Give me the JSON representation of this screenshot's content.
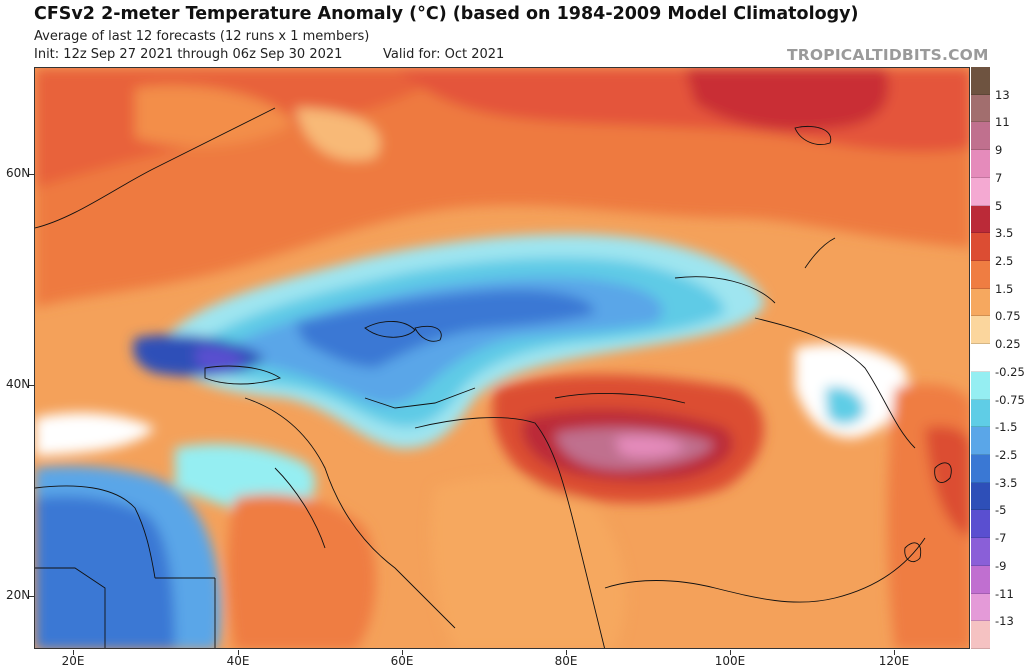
{
  "header": {
    "title": "CFSv2 2-meter Temperature Anomaly (°C) (based on 1984-2009 Model Climatology)",
    "subtitle": "Average of last 12 forecasts (12 runs x 1 members)",
    "init": "Init: 12z Sep 27 2021 through 06z Sep 30 2021",
    "valid": "Valid for: Oct 2021",
    "brand": "TROPICALTIDBITS.COM"
  },
  "map": {
    "latitude_labels": [
      "60N",
      "40N",
      "20N"
    ],
    "longitude_labels": [
      "20E",
      "40E",
      "60E",
      "80E",
      "100E",
      "120E"
    ]
  },
  "colorbar": {
    "labels": [
      "13",
      "11",
      "9",
      "7",
      "5",
      "3.5",
      "2.5",
      "1.5",
      "0.75",
      "0.25",
      "-0.25",
      "-0.75",
      "-1.5",
      "-2.5",
      "-3.5",
      "-5",
      "-7",
      "-9",
      "-11",
      "-13"
    ],
    "colors": [
      "#6e5340",
      "#a26e6e",
      "#c0708e",
      "#e58bbb",
      "#f4a9d2",
      "#bb2a38",
      "#dc4d33",
      "#ef7d42",
      "#f6a85f",
      "#fbd69d",
      "#ffffff",
      "#95eef2",
      "#5fcde6",
      "#5aa6e8",
      "#3a78d4",
      "#2e4fb8",
      "#5a4fd0",
      "#8a5fd8",
      "#c06fd0",
      "#e49ad8",
      "#f5c2c2"
    ]
  }
}
